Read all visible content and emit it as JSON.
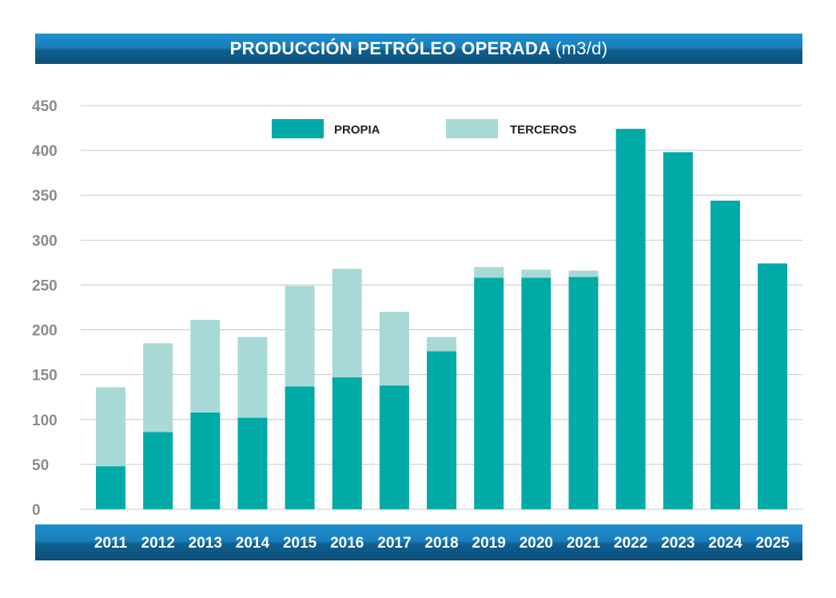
{
  "colors": {
    "band": "#1a7fbd",
    "propia": "#00aaa6",
    "terceros": "#a8d9d6",
    "grid": "#c8c8c8",
    "ytick": "#8c8c8c"
  },
  "chart_data": {
    "type": "bar",
    "stacked": true,
    "title": "PRODUCCIÓN PETRÓLEO OPERADA",
    "title_unit": "(m3/d)",
    "categories": [
      "2011",
      "2012",
      "2013",
      "2014",
      "2015",
      "2016",
      "2017",
      "2018",
      "2019",
      "2020",
      "2021",
      "2022",
      "2023",
      "2024",
      "2025"
    ],
    "series": [
      {
        "name": "PROPIA",
        "values": [
          48,
          86,
          108,
          102,
          137,
          147,
          138,
          176,
          258,
          258,
          259,
          424,
          398,
          344,
          274
        ]
      },
      {
        "name": "TERCEROS",
        "values": [
          88,
          99,
          103,
          90,
          112,
          121,
          82,
          16,
          12,
          9,
          7,
          0,
          0,
          0,
          0
        ]
      }
    ],
    "ylim": [
      0,
      450
    ],
    "yticks": [
      0,
      50,
      100,
      150,
      200,
      250,
      300,
      350,
      400,
      450
    ],
    "grid": true,
    "legend_position": "top"
  }
}
